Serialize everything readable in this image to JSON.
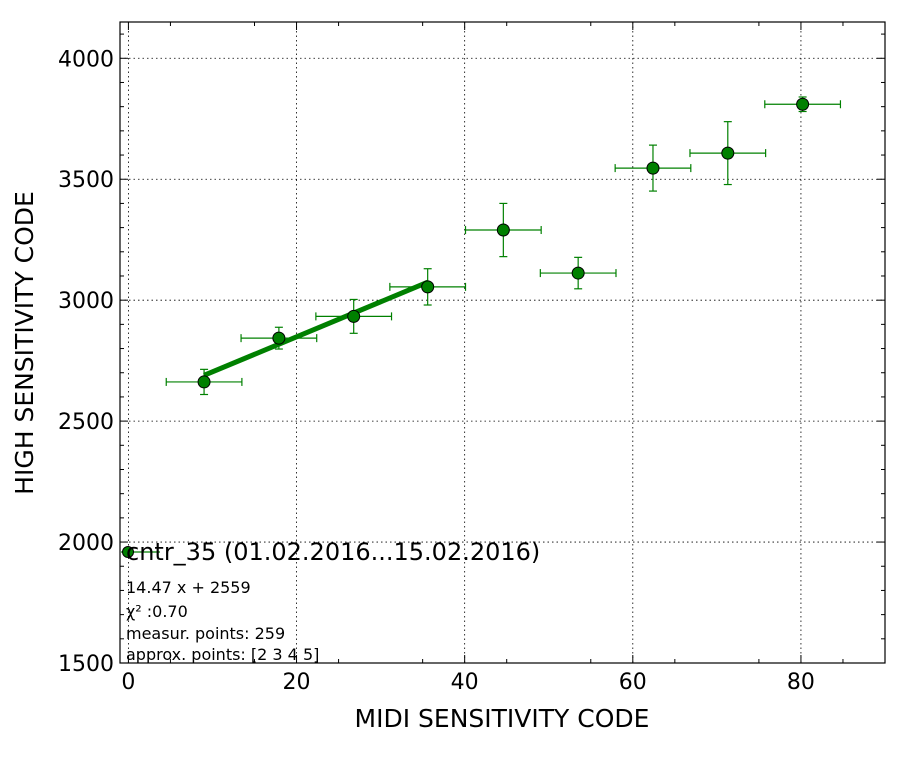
{
  "chart_data": {
    "type": "scatter",
    "xlabel": "MIDI SENSITIVITY CODE",
    "ylabel": "HIGH SENSITIVITY CODE",
    "xlim": [
      -1,
      90
    ],
    "ylim": [
      1500,
      4150
    ],
    "x_ticks": [
      0,
      20,
      40,
      60,
      80
    ],
    "y_ticks": [
      1500,
      2000,
      2500,
      3000,
      3500,
      4000
    ],
    "grid": true,
    "color": "#008000",
    "series": [
      {
        "name": "cntr_35 (01.02.2016...15.02.2016)",
        "points": [
          {
            "x": 0.0,
            "y": 1960,
            "xerr": 4.5,
            "yerr": 0
          },
          {
            "x": 9.0,
            "y": 2662,
            "xerr": 4.5,
            "yerr": 52
          },
          {
            "x": 17.9,
            "y": 2843,
            "xerr": 4.5,
            "yerr": 45
          },
          {
            "x": 26.8,
            "y": 2933,
            "xerr": 4.5,
            "yerr": 70
          },
          {
            "x": 35.6,
            "y": 3055,
            "xerr": 4.5,
            "yerr": 75
          },
          {
            "x": 44.6,
            "y": 3290,
            "xerr": 4.5,
            "yerr": 110
          },
          {
            "x": 53.5,
            "y": 3112,
            "xerr": 4.5,
            "yerr": 65
          },
          {
            "x": 62.4,
            "y": 3546,
            "xerr": 4.5,
            "yerr": 95
          },
          {
            "x": 71.3,
            "y": 3608,
            "xerr": 4.5,
            "yerr": 130
          },
          {
            "x": 80.2,
            "y": 3810,
            "xerr": 4.5,
            "yerr": 30
          }
        ]
      }
    ],
    "fit": {
      "slope": 14.47,
      "intercept": 2559,
      "x_range": [
        9.0,
        35.6
      ]
    },
    "legend": {
      "label": "cntr_35 (01.02.2016...15.02.2016)",
      "placement": "lower-left"
    },
    "annotations": [
      "14.47 x + 2559",
      "χ² :0.70",
      "measur. points: 259",
      "approx. points: [2 3 4 5]"
    ]
  }
}
